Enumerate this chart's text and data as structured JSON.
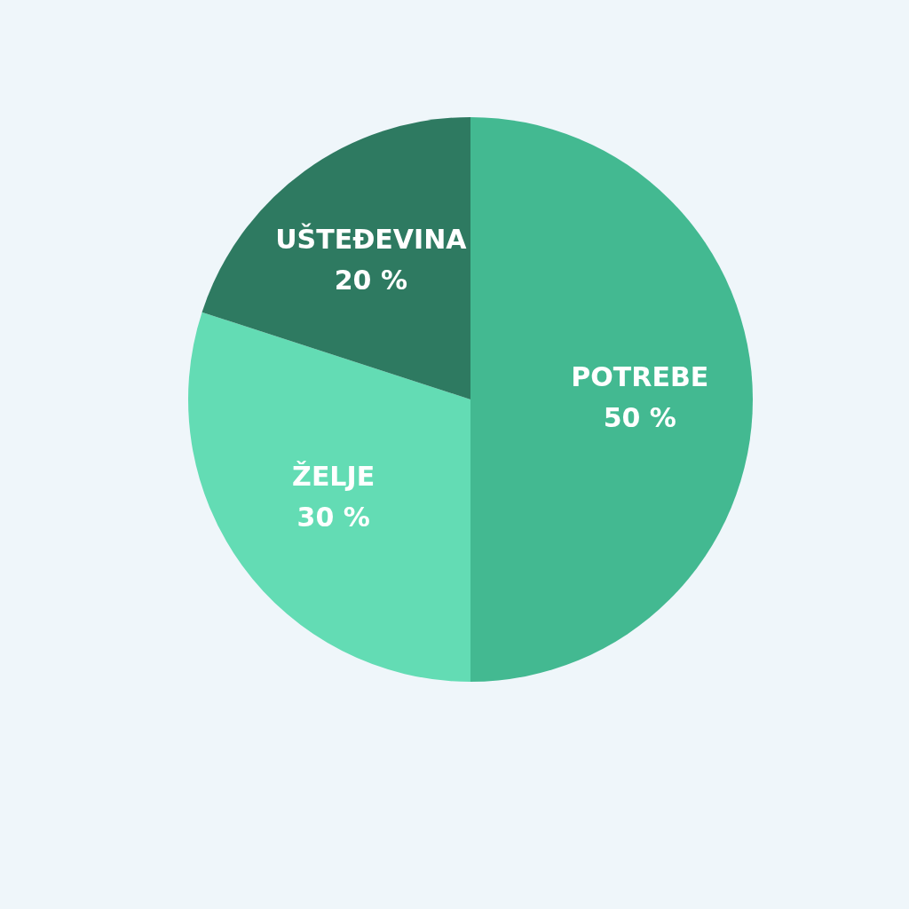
{
  "chart_data": {
    "type": "pie",
    "categories": [
      "POTREBE",
      "ŽELJE",
      "UŠTEĐEVINA"
    ],
    "values": [
      50,
      30,
      20
    ],
    "colors": [
      "#43b991",
      "#63dcb4",
      "#2e7a61"
    ],
    "value_labels": [
      "50 %",
      "30 %",
      "20 %"
    ],
    "legend": false
  }
}
